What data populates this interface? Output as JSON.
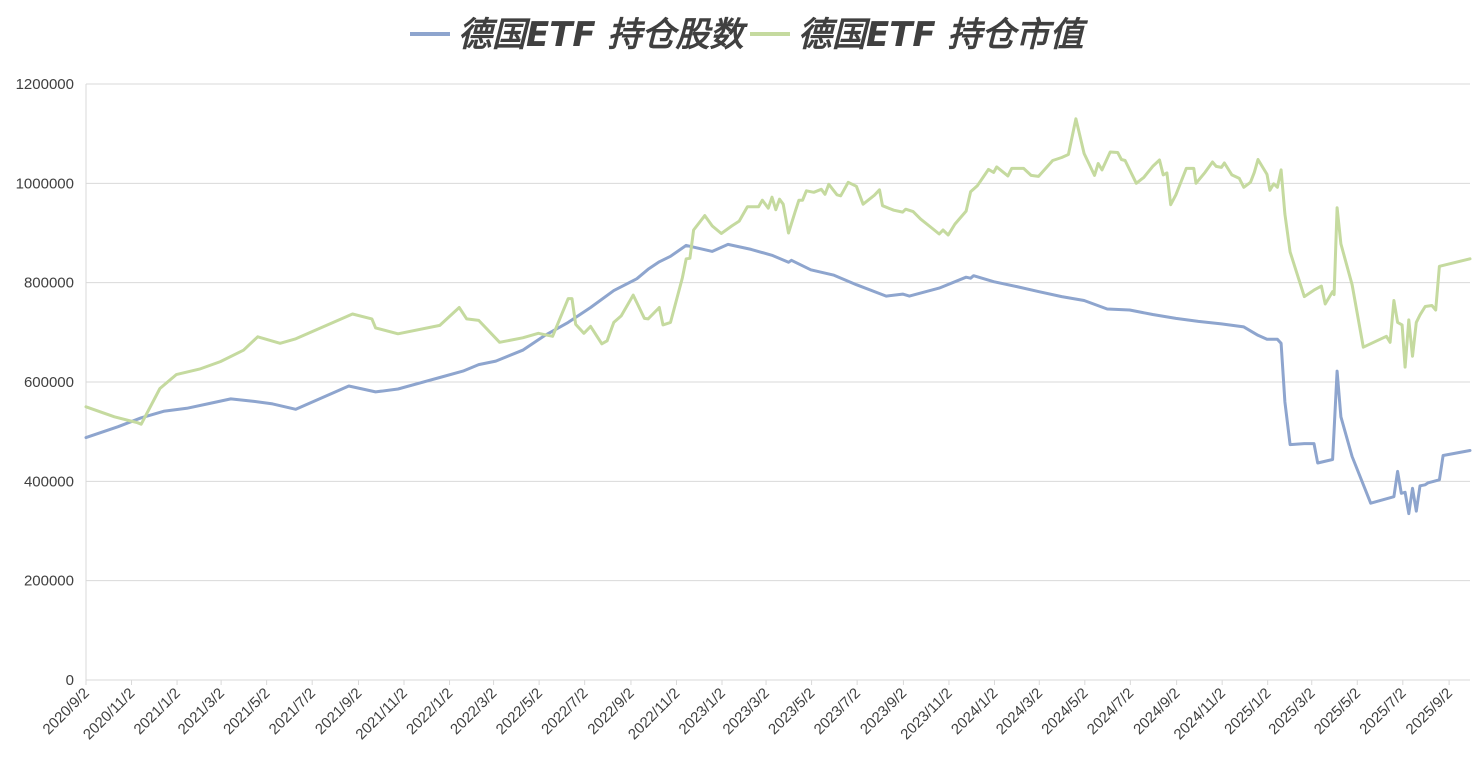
{
  "chart_data": {
    "type": "line",
    "title": "",
    "xlabel": "",
    "ylabel": "",
    "ylim": [
      0,
      1200000
    ],
    "yticks": [
      "0",
      "200000",
      "400000",
      "600000",
      "800000",
      "1000000",
      "1200000"
    ],
    "grid": true,
    "legend_position": "top-center",
    "x_tick_labels": [
      "2020/9/2",
      "2020/11/2",
      "2021/1/2",
      "2021/3/2",
      "2021/5/2",
      "2021/7/2",
      "2021/9/2",
      "2021/11/2",
      "2022/1/2",
      "2022/3/2",
      "2022/5/2",
      "2022/7/2",
      "2022/9/2",
      "2022/11/2",
      "2023/1/2",
      "2023/3/2",
      "2023/5/2",
      "2023/7/2",
      "2023/9/2",
      "2023/11/2",
      "2024/1/2",
      "2024/3/2",
      "2024/5/2",
      "2024/7/2",
      "2024/9/2",
      "2024/11/2",
      "2025/1/2",
      "2025/3/2",
      "2025/5/2",
      "2025/7/2",
      "2025/9/2"
    ],
    "x_range": [
      "2020/9/2",
      "2025/9/30"
    ],
    "series": [
      {
        "name": "德国ETF 持仓股数",
        "color": "#8EA5CE",
        "points": [
          [
            "2020/9/2",
            488000
          ],
          [
            "2020/10/15",
            510000
          ],
          [
            "2020/11/15",
            528000
          ],
          [
            "2020/12/15",
            541000
          ],
          [
            "2021/1/15",
            547000
          ],
          [
            "2021/2/15",
            557000
          ],
          [
            "2021/3/15",
            566000
          ],
          [
            "2021/4/15",
            561000
          ],
          [
            "2021/5/10",
            556000
          ],
          [
            "2021/6/10",
            545000
          ],
          [
            "2021/8/20",
            592000
          ],
          [
            "2021/9/25",
            580000
          ],
          [
            "2021/10/25",
            586000
          ],
          [
            "2021/12/20",
            609000
          ],
          [
            "2022/1/20",
            622000
          ],
          [
            "2022/2/10",
            635000
          ],
          [
            "2022/3/5",
            642000
          ],
          [
            "2022/4/10",
            664000
          ],
          [
            "2022/5/10",
            694000
          ],
          [
            "2022/6/10",
            720000
          ],
          [
            "2022/7/10",
            750000
          ],
          [
            "2022/8/10",
            784000
          ],
          [
            "2022/9/10",
            808000
          ],
          [
            "2022/9/25",
            827000
          ],
          [
            "2022/10/10",
            842000
          ],
          [
            "2022/10/25",
            853000
          ],
          [
            "2022/11/15",
            875000
          ],
          [
            "2022/12/20",
            863000
          ],
          [
            "2023/1/10",
            877000
          ],
          [
            "2023/2/10",
            867000
          ],
          [
            "2023/3/10",
            855000
          ],
          [
            "2023/4/1",
            841000
          ],
          [
            "2023/4/5",
            845000
          ],
          [
            "2023/5/1",
            826000
          ],
          [
            "2023/6/1",
            815000
          ],
          [
            "2023/7/1",
            796000
          ],
          [
            "2023/8/10",
            773000
          ],
          [
            "2023/9/1",
            777000
          ],
          [
            "2023/9/10",
            773000
          ],
          [
            "2023/10/20",
            789000
          ],
          [
            "2023/11/25",
            811000
          ],
          [
            "2023/12/1",
            809000
          ],
          [
            "2023/12/5",
            814000
          ],
          [
            "2024/1/1",
            802000
          ],
          [
            "2024/2/1",
            792000
          ],
          [
            "2024/3/1",
            782000
          ],
          [
            "2024/4/1",
            772000
          ],
          [
            "2024/5/1",
            764000
          ],
          [
            "2024/6/1",
            747000
          ],
          [
            "2024/7/1",
            745000
          ],
          [
            "2024/8/1",
            736000
          ],
          [
            "2024/9/1",
            728000
          ],
          [
            "2024/10/1",
            722000
          ],
          [
            "2024/11/1",
            717000
          ],
          [
            "2024/12/1",
            711000
          ],
          [
            "2024/12/20",
            694000
          ],
          [
            "2025/1/1",
            686000
          ],
          [
            "2025/1/15",
            686000
          ],
          [
            "2025/1/20",
            678000
          ],
          [
            "2025/1/25",
            560000
          ],
          [
            "2025/2/1",
            474000
          ],
          [
            "2025/2/20",
            476000
          ],
          [
            "2025/3/5",
            476000
          ],
          [
            "2025/3/10",
            437000
          ],
          [
            "2025/3/30",
            444000
          ],
          [
            "2025/4/5",
            622000
          ],
          [
            "2025/4/10",
            530000
          ],
          [
            "2025/4/25",
            450000
          ],
          [
            "2025/5/20",
            356000
          ],
          [
            "2025/6/20",
            369000
          ],
          [
            "2025/6/25",
            420000
          ],
          [
            "2025/6/30",
            376000
          ],
          [
            "2025/7/5",
            378000
          ],
          [
            "2025/7/10",
            335000
          ],
          [
            "2025/7/15",
            386000
          ],
          [
            "2025/7/20",
            340000
          ],
          [
            "2025/7/25",
            391000
          ],
          [
            "2025/8/1",
            393000
          ],
          [
            "2025/8/5",
            397000
          ],
          [
            "2025/8/20",
            403000
          ],
          [
            "2025/8/25",
            452000
          ],
          [
            "2025/9/30",
            462000
          ]
        ]
      },
      {
        "name": "德国ETF 持仓市值",
        "color": "#C5DA9F",
        "points": [
          [
            "2020/9/2",
            550000
          ],
          [
            "2020/10/10",
            530000
          ],
          [
            "2020/11/10",
            518000
          ],
          [
            "2020/11/15",
            515000
          ],
          [
            "2020/12/10",
            587000
          ],
          [
            "2021/1/1",
            615000
          ],
          [
            "2021/2/1",
            626000
          ],
          [
            "2021/3/1",
            641000
          ],
          [
            "2021/4/1",
            664000
          ],
          [
            "2021/4/20",
            691000
          ],
          [
            "2021/5/20",
            678000
          ],
          [
            "2021/6/10",
            687000
          ],
          [
            "2021/8/25",
            737000
          ],
          [
            "2021/9/20",
            727000
          ],
          [
            "2021/9/25",
            709000
          ],
          [
            "2021/10/25",
            697000
          ],
          [
            "2021/12/20",
            714000
          ],
          [
            "2022/1/15",
            750000
          ],
          [
            "2022/1/25",
            727000
          ],
          [
            "2022/2/10",
            724000
          ],
          [
            "2022/3/10",
            680000
          ],
          [
            "2022/4/10",
            689000
          ],
          [
            "2022/5/1",
            698000
          ],
          [
            "2022/5/20",
            692000
          ],
          [
            "2022/6/10",
            768000
          ],
          [
            "2022/6/15",
            768000
          ],
          [
            "2022/6/20",
            716000
          ],
          [
            "2022/7/1",
            698000
          ],
          [
            "2022/7/10",
            712000
          ],
          [
            "2022/7/25",
            677000
          ],
          [
            "2022/8/1",
            683000
          ],
          [
            "2022/8/10",
            720000
          ],
          [
            "2022/8/20",
            733000
          ],
          [
            "2022/9/5",
            775000
          ],
          [
            "2022/9/20",
            728000
          ],
          [
            "2022/9/25",
            727000
          ],
          [
            "2022/10/10",
            750000
          ],
          [
            "2022/10/15",
            715000
          ],
          [
            "2022/10/25",
            720000
          ],
          [
            "2022/11/10",
            810000
          ],
          [
            "2022/11/15",
            848000
          ],
          [
            "2022/11/20",
            849000
          ],
          [
            "2022/11/25",
            906000
          ],
          [
            "2022/12/10",
            935000
          ],
          [
            "2022/12/20",
            914000
          ],
          [
            "2023/1/1",
            899000
          ],
          [
            "2023/1/15",
            914000
          ],
          [
            "2023/1/25",
            924000
          ],
          [
            "2023/2/5",
            953000
          ],
          [
            "2023/2/20",
            953000
          ],
          [
            "2023/2/25",
            966000
          ],
          [
            "2023/3/5",
            950000
          ],
          [
            "2023/3/10",
            972000
          ],
          [
            "2023/3/15",
            947000
          ],
          [
            "2023/3/20",
            968000
          ],
          [
            "2023/3/25",
            958000
          ],
          [
            "2023/4/1",
            900000
          ],
          [
            "2023/4/10",
            943000
          ],
          [
            "2023/4/15",
            966000
          ],
          [
            "2023/4/20",
            966000
          ],
          [
            "2023/4/25",
            985000
          ],
          [
            "2023/5/5",
            982000
          ],
          [
            "2023/5/15",
            988000
          ],
          [
            "2023/5/20",
            978000
          ],
          [
            "2023/5/25",
            998000
          ],
          [
            "2023/6/5",
            977000
          ],
          [
            "2023/6/10",
            975000
          ],
          [
            "2023/6/20",
            1002000
          ],
          [
            "2023/7/1",
            994000
          ],
          [
            "2023/7/10",
            958000
          ],
          [
            "2023/7/25",
            976000
          ],
          [
            "2023/8/1",
            987000
          ],
          [
            "2023/8/5",
            955000
          ],
          [
            "2023/8/20",
            946000
          ],
          [
            "2023/9/1",
            942000
          ],
          [
            "2023/9/5",
            948000
          ],
          [
            "2023/9/15",
            943000
          ],
          [
            "2023/9/25",
            928000
          ],
          [
            "2023/10/10",
            910000
          ],
          [
            "2023/10/20",
            898000
          ],
          [
            "2023/10/25",
            906000
          ],
          [
            "2023/11/1",
            896000
          ],
          [
            "2023/11/10",
            918000
          ],
          [
            "2023/11/25",
            944000
          ],
          [
            "2023/12/1",
            983000
          ],
          [
            "2023/12/10",
            995000
          ],
          [
            "2023/12/25",
            1028000
          ],
          [
            "2024/1/1",
            1022000
          ],
          [
            "2024/1/5",
            1033000
          ],
          [
            "2024/1/20",
            1015000
          ],
          [
            "2024/1/25",
            1030000
          ],
          [
            "2024/2/10",
            1030000
          ],
          [
            "2024/2/20",
            1016000
          ],
          [
            "2024/3/1",
            1014000
          ],
          [
            "2024/3/20",
            1046000
          ],
          [
            "2024/4/1",
            1052000
          ],
          [
            "2024/4/10",
            1058000
          ],
          [
            "2024/4/20",
            1130000
          ],
          [
            "2024/5/1",
            1060000
          ],
          [
            "2024/5/15",
            1016000
          ],
          [
            "2024/5/20",
            1040000
          ],
          [
            "2024/5/25",
            1027000
          ],
          [
            "2024/6/5",
            1063000
          ],
          [
            "2024/6/15",
            1062000
          ],
          [
            "2024/6/20",
            1048000
          ],
          [
            "2024/6/25",
            1046000
          ],
          [
            "2024/7/10",
            1000000
          ],
          [
            "2024/7/20",
            1012000
          ],
          [
            "2024/8/1",
            1034000
          ],
          [
            "2024/8/10",
            1047000
          ],
          [
            "2024/8/15",
            1017000
          ],
          [
            "2024/8/20",
            1021000
          ],
          [
            "2024/8/25",
            957000
          ],
          [
            "2024/9/1",
            977000
          ],
          [
            "2024/9/15",
            1030000
          ],
          [
            "2024/9/25",
            1030000
          ],
          [
            "2024/9/28",
            1000000
          ],
          [
            "2024/10/10",
            1022000
          ],
          [
            "2024/10/20",
            1043000
          ],
          [
            "2024/10/25",
            1034000
          ],
          [
            "2024/11/1",
            1032000
          ],
          [
            "2024/11/5",
            1041000
          ],
          [
            "2024/11/15",
            1017000
          ],
          [
            "2024/11/25",
            1010000
          ],
          [
            "2024/12/1",
            992000
          ],
          [
            "2024/12/10",
            1002000
          ],
          [
            "2024/12/15",
            1022000
          ],
          [
            "2024/12/20",
            1048000
          ],
          [
            "2025/1/1",
            1018000
          ],
          [
            "2025/1/5",
            986000
          ],
          [
            "2025/1/10",
            999000
          ],
          [
            "2025/1/15",
            992000
          ],
          [
            "2025/1/20",
            1027000
          ],
          [
            "2025/1/25",
            938000
          ],
          [
            "2025/2/1",
            862000
          ],
          [
            "2025/2/20",
            772000
          ],
          [
            "2025/3/5",
            785000
          ],
          [
            "2025/3/15",
            793000
          ],
          [
            "2025/3/20",
            757000
          ],
          [
            "2025/3/30",
            782000
          ],
          [
            "2025/4/1",
            776000
          ],
          [
            "2025/4/5",
            951000
          ],
          [
            "2025/4/10",
            878000
          ],
          [
            "2025/4/25",
            796000
          ],
          [
            "2025/5/10",
            670000
          ],
          [
            "2025/6/10",
            692000
          ],
          [
            "2025/6/15",
            680000
          ],
          [
            "2025/6/20",
            764000
          ],
          [
            "2025/6/25",
            720000
          ],
          [
            "2025/7/1",
            715000
          ],
          [
            "2025/7/5",
            630000
          ],
          [
            "2025/7/10",
            725000
          ],
          [
            "2025/7/15",
            652000
          ],
          [
            "2025/7/20",
            720000
          ],
          [
            "2025/7/25",
            735000
          ],
          [
            "2025/8/1",
            752000
          ],
          [
            "2025/8/10",
            754000
          ],
          [
            "2025/8/15",
            745000
          ],
          [
            "2025/8/20",
            833000
          ],
          [
            "2025/9/30",
            848000
          ]
        ]
      }
    ]
  }
}
